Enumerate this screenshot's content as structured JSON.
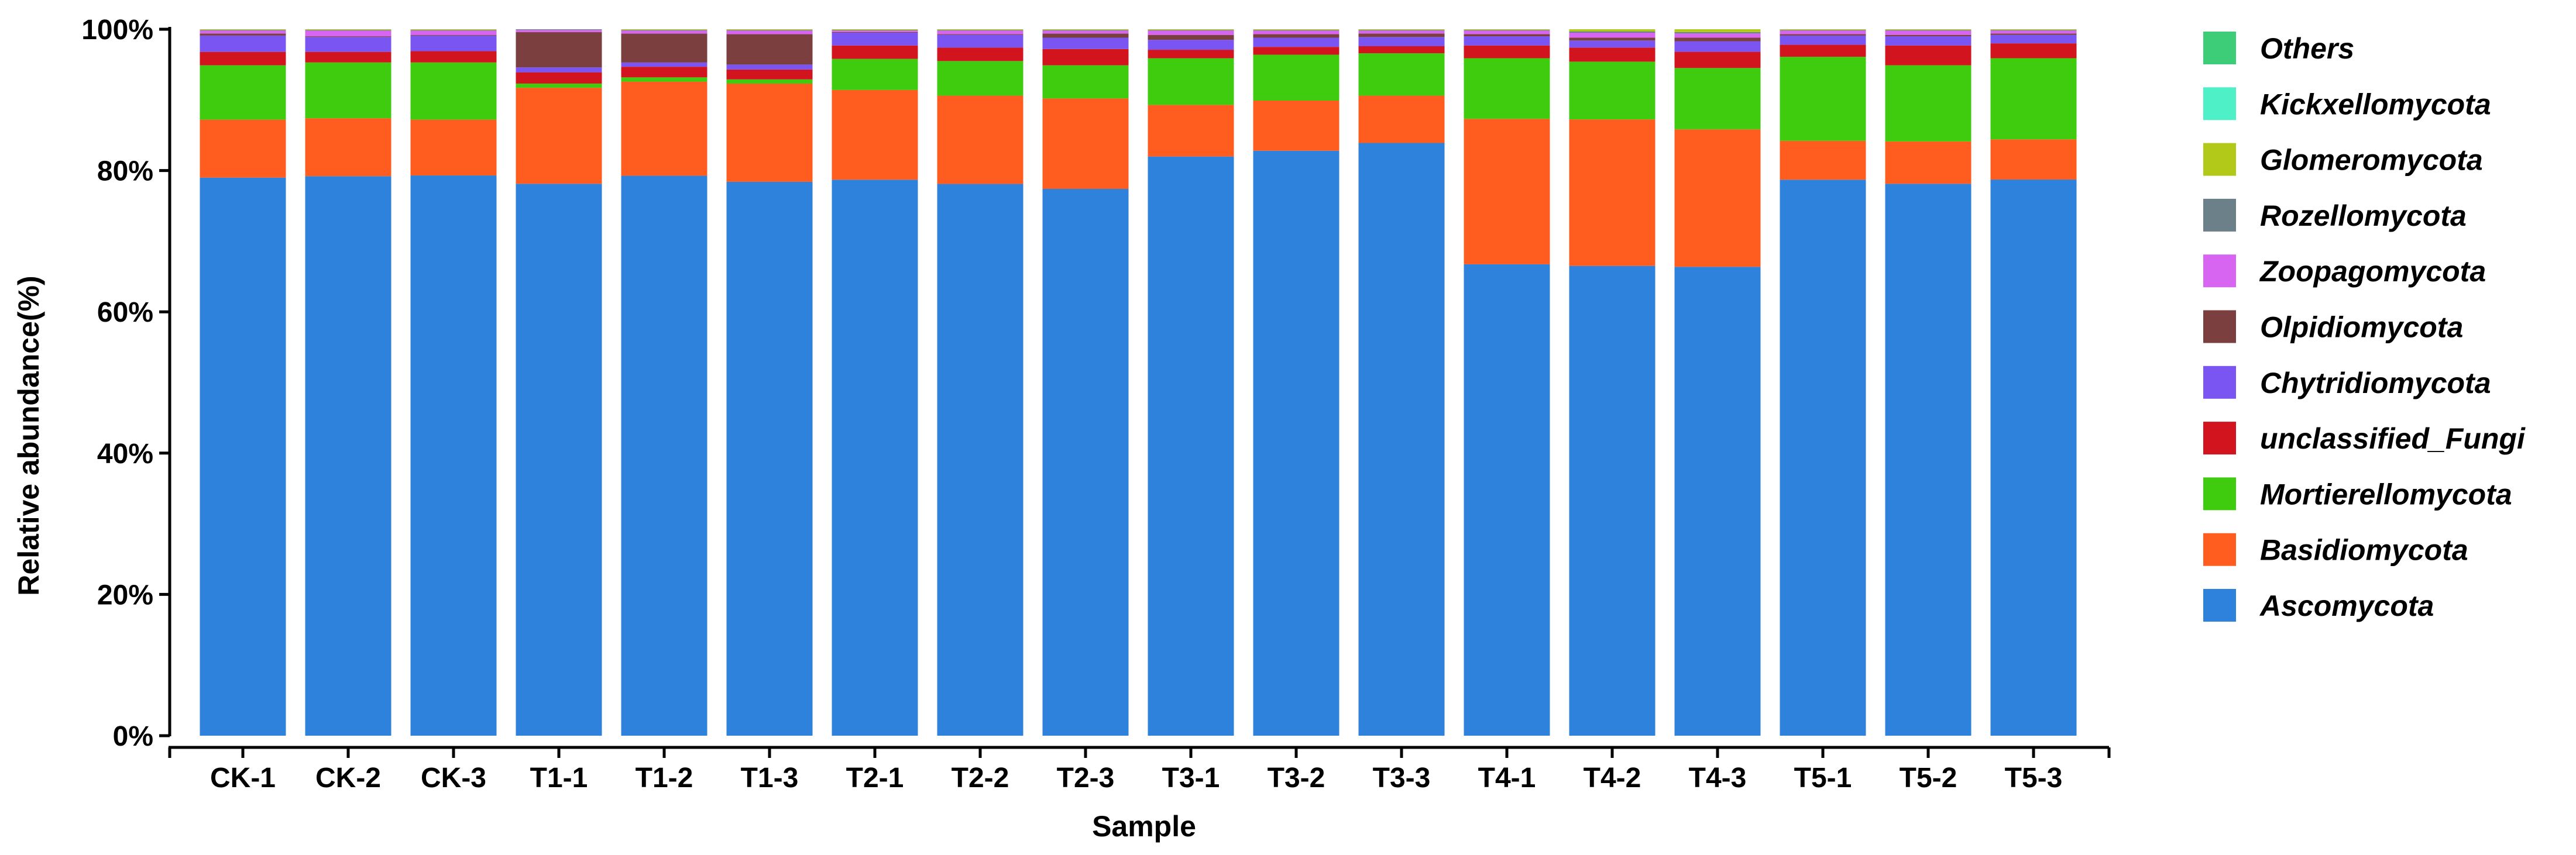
{
  "chart_data": {
    "type": "bar",
    "stacked": true,
    "normalized": true,
    "categories": [
      "CK-1",
      "CK-2",
      "CK-3",
      "T1-1",
      "T1-2",
      "T1-3",
      "T2-1",
      "T2-2",
      "T2-3",
      "T3-1",
      "T3-2",
      "T3-3",
      "T4-1",
      "T4-2",
      "T4-3",
      "T5-1",
      "T5-2",
      "T5-3"
    ],
    "xlabel": "Sample",
    "ylabel": "Relative abundance(%)",
    "ylim": [
      0,
      100
    ],
    "yticks": [
      "0%",
      "20%",
      "40%",
      "60%",
      "80%",
      "100%"
    ],
    "grid": false,
    "legend_position": "right",
    "series": [
      {
        "name": "Ascomycota",
        "color": "#2E82DC",
        "values": [
          79.0,
          79.2,
          79.3,
          78.2,
          79.1,
          78.4,
          78.7,
          78.1,
          77.4,
          81.9,
          82.8,
          83.9,
          66.8,
          66.7,
          66.5,
          78.7,
          78.2,
          78.8
        ]
      },
      {
        "name": "Basidiomycota",
        "color": "#FF5C1F",
        "values": [
          8.2,
          8.2,
          7.9,
          13.6,
          13.3,
          13.9,
          12.7,
          12.5,
          12.8,
          7.3,
          7.1,
          6.7,
          20.6,
          20.8,
          19.5,
          5.5,
          6.0,
          5.7
        ]
      },
      {
        "name": "Mortierellomycota",
        "color": "#3FCC0F",
        "values": [
          7.7,
          7.9,
          8.1,
          0.6,
          0.6,
          0.6,
          4.4,
          4.9,
          4.7,
          6.6,
          6.5,
          6.0,
          8.6,
          8.2,
          8.7,
          11.9,
          10.8,
          11.5
        ]
      },
      {
        "name": "unclassified_Fungi",
        "color": "#D2141E",
        "values": [
          1.9,
          1.5,
          1.6,
          1.6,
          1.5,
          1.4,
          1.9,
          1.9,
          2.3,
          1.2,
          1.1,
          1.0,
          1.8,
          2.0,
          2.3,
          1.7,
          2.8,
          2.1
        ]
      },
      {
        "name": "Chytridiomycota",
        "color": "#7B55F2",
        "values": [
          2.3,
          2.1,
          2.2,
          0.7,
          0.6,
          0.7,
          1.8,
          1.8,
          1.6,
          1.4,
          1.3,
          1.3,
          1.3,
          1.0,
          1.5,
          1.3,
          1.3,
          1.2
        ]
      },
      {
        "name": "Olpidiomycota",
        "color": "#7B3F3F",
        "values": [
          0.3,
          0.1,
          0.1,
          5.0,
          4.1,
          4.3,
          0.1,
          0.1,
          0.6,
          0.7,
          0.5,
          0.5,
          0.3,
          0.4,
          0.5,
          0.2,
          0.2,
          0.2
        ]
      },
      {
        "name": "Zoopagomycota",
        "color": "#D864F2",
        "values": [
          0.4,
          0.8,
          0.6,
          0.3,
          0.4,
          0.5,
          0.2,
          0.5,
          0.4,
          0.6,
          0.5,
          0.4,
          0.5,
          0.7,
          0.6,
          0.5,
          0.6,
          0.4
        ]
      },
      {
        "name": "Rozellomycota",
        "color": "#6B8088",
        "values": [
          0.1,
          0.1,
          0.1,
          0.1,
          0.1,
          0.1,
          0.1,
          0.1,
          0.1,
          0.1,
          0.1,
          0.1,
          0.1,
          0.2,
          0.2,
          0.1,
          0.1,
          0.1
        ]
      },
      {
        "name": "Glomeromycota",
        "color": "#B3C91A",
        "values": [
          0.1,
          0.1,
          0.1,
          0.0,
          0.1,
          0.1,
          0.1,
          0.1,
          0.1,
          0.1,
          0.1,
          0.1,
          0.1,
          0.3,
          0.4,
          0.1,
          0.1,
          0.1
        ]
      },
      {
        "name": "Kickxellomycota",
        "color": "#4EF0C8",
        "values": [
          0.0,
          0.0,
          0.0,
          0.0,
          0.0,
          0.0,
          0.0,
          0.0,
          0.0,
          0.0,
          0.0,
          0.0,
          0.0,
          0.0,
          0.0,
          0.0,
          0.0,
          0.0
        ]
      },
      {
        "name": "Others",
        "color": "#3DCC78",
        "values": [
          0.0,
          0.0,
          0.0,
          0.0,
          0.0,
          0.0,
          0.0,
          0.0,
          0.0,
          0.0,
          0.0,
          0.0,
          0.0,
          0.0,
          0.0,
          0.0,
          0.0,
          0.0
        ]
      }
    ],
    "legend_order": [
      "Others",
      "Kickxellomycota",
      "Glomeromycota",
      "Rozellomycota",
      "Zoopagomycota",
      "Olpidiomycota",
      "Chytridiomycota",
      "unclassified_Fungi",
      "Mortierellomycota",
      "Basidiomycota",
      "Ascomycota"
    ]
  }
}
